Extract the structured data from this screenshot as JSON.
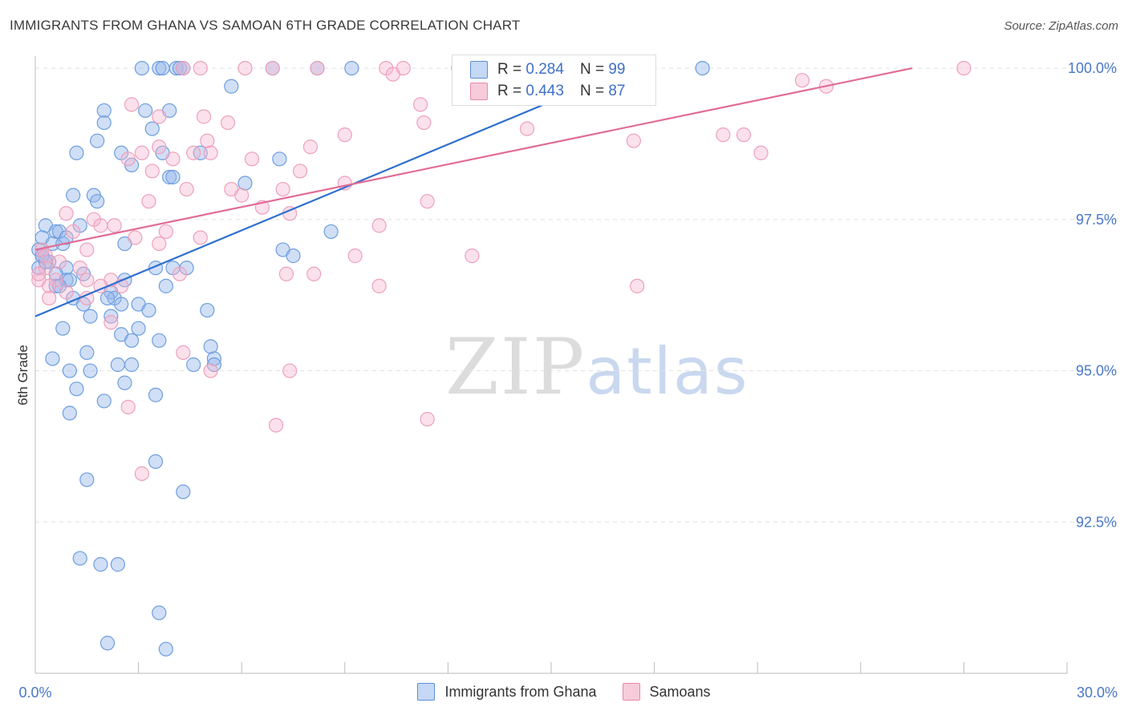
{
  "header": {
    "title": "IMMIGRANTS FROM GHANA VS SAMOAN 6TH GRADE CORRELATION CHART",
    "source": "Source: ZipAtlas.com"
  },
  "watermark": {
    "zip": "ZIP",
    "atlas": "atlas"
  },
  "legend": {
    "r_label": "R =",
    "n_label": "N =",
    "series1": {
      "r": "0.284",
      "n": "99"
    },
    "series2": {
      "r": "0.443",
      "n": "87"
    }
  },
  "colors": {
    "blue": "#5b8fd6",
    "pink": "#e88aa8",
    "blue_line": "#2f6fd0",
    "pink_line": "#e26b95"
  },
  "chart_data": {
    "type": "scatter",
    "title": "IMMIGRANTS FROM GHANA VS SAMOAN 6TH GRADE CORRELATION CHART",
    "xlabel": "",
    "ylabel": "6th Grade",
    "xlim": [
      0,
      30
    ],
    "ylim": [
      90.0,
      100.2
    ],
    "x_tick_labels": [
      "0.0%",
      "30.0%"
    ],
    "y_ticks": [
      92.5,
      95.0,
      97.5,
      100.0
    ],
    "y_tick_labels": [
      "92.5%",
      "95.0%",
      "97.5%",
      "100.0%"
    ],
    "series": [
      {
        "name": "Immigrants from Ghana",
        "trend": {
          "x0": 0,
          "y0": 95.9,
          "x1": 16.9,
          "y1": 99.9
        },
        "points": [
          [
            3.1,
            100
          ],
          [
            3.6,
            100
          ],
          [
            3.7,
            100
          ],
          [
            4.1,
            100
          ],
          [
            4.2,
            100
          ],
          [
            4.3,
            100
          ],
          [
            6.9,
            100
          ],
          [
            8.2,
            100
          ],
          [
            9.2,
            100
          ],
          [
            19.4,
            100
          ],
          [
            5.7,
            99.7
          ],
          [
            2.0,
            99.3
          ],
          [
            3.2,
            99.3
          ],
          [
            3.9,
            99.3
          ],
          [
            2.0,
            99.1
          ],
          [
            3.4,
            99.0
          ],
          [
            1.8,
            98.8
          ],
          [
            1.2,
            98.6
          ],
          [
            2.5,
            98.6
          ],
          [
            3.7,
            98.6
          ],
          [
            4.8,
            98.6
          ],
          [
            7.1,
            98.5
          ],
          [
            2.8,
            98.4
          ],
          [
            3.9,
            98.2
          ],
          [
            4.0,
            98.2
          ],
          [
            6.1,
            98.1
          ],
          [
            1.1,
            97.9
          ],
          [
            1.7,
            97.9
          ],
          [
            1.8,
            97.8
          ],
          [
            0.3,
            97.4
          ],
          [
            0.6,
            97.3
          ],
          [
            0.7,
            97.3
          ],
          [
            1.3,
            97.4
          ],
          [
            8.6,
            97.3
          ],
          [
            0.2,
            97.2
          ],
          [
            0.5,
            97.1
          ],
          [
            0.8,
            97.1
          ],
          [
            2.6,
            97.1
          ],
          [
            7.2,
            97.0
          ],
          [
            0.1,
            97.0
          ],
          [
            0.2,
            96.9
          ],
          [
            0.4,
            96.8
          ],
          [
            0.1,
            96.7
          ],
          [
            7.5,
            96.9
          ],
          [
            0.9,
            96.7
          ],
          [
            3.5,
            96.7
          ],
          [
            4.0,
            96.7
          ],
          [
            4.4,
            96.7
          ],
          [
            0.6,
            96.6
          ],
          [
            0.9,
            96.5
          ],
          [
            1.0,
            96.5
          ],
          [
            2.6,
            96.5
          ],
          [
            0.6,
            96.4
          ],
          [
            3.8,
            96.4
          ],
          [
            2.2,
            96.3
          ],
          [
            1.1,
            96.2
          ],
          [
            2.3,
            96.2
          ],
          [
            1.4,
            96.1
          ],
          [
            2.5,
            96.1
          ],
          [
            3.0,
            96.1
          ],
          [
            5.0,
            96.0
          ],
          [
            1.6,
            95.9
          ],
          [
            2.2,
            95.9
          ],
          [
            0.8,
            95.7
          ],
          [
            2.5,
            95.6
          ],
          [
            3.0,
            95.7
          ],
          [
            2.8,
            95.5
          ],
          [
            3.6,
            95.5
          ],
          [
            5.1,
            95.4
          ],
          [
            1.5,
            95.3
          ],
          [
            0.5,
            95.2
          ],
          [
            5.2,
            95.2
          ],
          [
            2.4,
            95.1
          ],
          [
            2.8,
            95.1
          ],
          [
            5.2,
            95.1
          ],
          [
            1.6,
            95.0
          ],
          [
            1.0,
            95.0
          ],
          [
            2.6,
            94.8
          ],
          [
            1.2,
            94.7
          ],
          [
            3.5,
            94.6
          ],
          [
            2.0,
            94.5
          ],
          [
            1.0,
            94.3
          ],
          [
            3.5,
            93.5
          ],
          [
            1.5,
            93.2
          ],
          [
            4.3,
            93.0
          ],
          [
            1.3,
            91.9
          ],
          [
            1.9,
            91.8
          ],
          [
            2.4,
            91.8
          ],
          [
            3.6,
            91.0
          ],
          [
            2.1,
            90.5
          ],
          [
            3.8,
            90.4
          ],
          [
            0.2,
            96.9
          ],
          [
            0.3,
            96.8
          ],
          [
            0.7,
            96.4
          ],
          [
            2.1,
            96.2
          ],
          [
            4.6,
            95.1
          ],
          [
            1.4,
            96.6
          ],
          [
            0.9,
            97.2
          ],
          [
            3.3,
            96.0
          ]
        ]
      },
      {
        "name": "Samoans",
        "trend": {
          "x0": 0,
          "y0": 97.0,
          "x1": 25.5,
          "y1": 100.0
        },
        "points": [
          [
            4.3,
            100
          ],
          [
            4.8,
            100
          ],
          [
            6.1,
            100
          ],
          [
            6.9,
            100
          ],
          [
            8.2,
            100
          ],
          [
            10.2,
            100
          ],
          [
            10.7,
            100
          ],
          [
            12.3,
            100
          ],
          [
            13.4,
            100
          ],
          [
            27.0,
            100
          ],
          [
            10.4,
            99.9
          ],
          [
            22.3,
            99.8
          ],
          [
            23.0,
            99.7
          ],
          [
            11.2,
            99.4
          ],
          [
            2.8,
            99.4
          ],
          [
            3.6,
            99.2
          ],
          [
            4.9,
            99.2
          ],
          [
            5.6,
            99.1
          ],
          [
            11.3,
            99.1
          ],
          [
            14.3,
            99.0
          ],
          [
            20.0,
            98.9
          ],
          [
            20.6,
            98.9
          ],
          [
            9.0,
            98.9
          ],
          [
            17.4,
            98.8
          ],
          [
            5.0,
            98.8
          ],
          [
            3.6,
            98.7
          ],
          [
            8.0,
            98.7
          ],
          [
            3.1,
            98.6
          ],
          [
            5.1,
            98.6
          ],
          [
            21.1,
            98.6
          ],
          [
            4.6,
            98.6
          ],
          [
            2.7,
            98.5
          ],
          [
            6.3,
            98.5
          ],
          [
            4.0,
            98.5
          ],
          [
            3.4,
            98.3
          ],
          [
            7.7,
            98.3
          ],
          [
            5.7,
            98.0
          ],
          [
            7.2,
            98.0
          ],
          [
            4.4,
            98.0
          ],
          [
            9.0,
            98.1
          ],
          [
            6.0,
            97.9
          ],
          [
            3.3,
            97.8
          ],
          [
            11.4,
            97.8
          ],
          [
            6.6,
            97.7
          ],
          [
            7.4,
            97.6
          ],
          [
            10.0,
            97.4
          ],
          [
            1.7,
            97.5
          ],
          [
            1.9,
            97.4
          ],
          [
            3.8,
            97.3
          ],
          [
            4.8,
            97.2
          ],
          [
            1.1,
            97.3
          ],
          [
            2.9,
            97.2
          ],
          [
            1.5,
            97.0
          ],
          [
            0.2,
            97.0
          ],
          [
            9.3,
            96.9
          ],
          [
            12.7,
            96.9
          ],
          [
            1.3,
            96.7
          ],
          [
            0.7,
            96.8
          ],
          [
            0.3,
            96.7
          ],
          [
            8.1,
            96.6
          ],
          [
            7.3,
            96.6
          ],
          [
            4.2,
            96.6
          ],
          [
            0.1,
            96.5
          ],
          [
            0.6,
            96.5
          ],
          [
            1.5,
            96.5
          ],
          [
            2.2,
            96.5
          ],
          [
            2.5,
            96.4
          ],
          [
            0.4,
            96.4
          ],
          [
            0.9,
            96.3
          ],
          [
            10.0,
            96.4
          ],
          [
            1.5,
            96.2
          ],
          [
            0.4,
            96.2
          ],
          [
            2.2,
            95.8
          ],
          [
            4.3,
            95.3
          ],
          [
            5.1,
            95.0
          ],
          [
            7.4,
            95.0
          ],
          [
            2.7,
            94.4
          ],
          [
            7.0,
            94.1
          ],
          [
            11.4,
            94.2
          ],
          [
            3.1,
            93.3
          ],
          [
            17.5,
            96.4
          ],
          [
            0.1,
            96.6
          ],
          [
            0.3,
            96.9
          ],
          [
            1.9,
            96.4
          ],
          [
            2.3,
            97.4
          ],
          [
            0.9,
            97.6
          ],
          [
            3.6,
            97.1
          ]
        ]
      }
    ]
  },
  "bottom_legend": {
    "series1": "Immigrants from Ghana",
    "series2": "Samoans"
  }
}
